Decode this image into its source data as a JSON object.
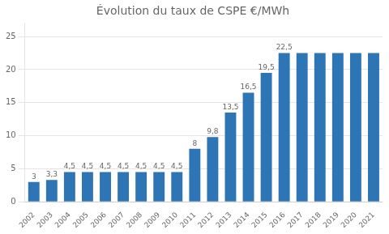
{
  "chart_data": {
    "type": "bar",
    "title": "Évolution du taux de CSPE €/MWh",
    "categories": [
      "2002",
      "2003",
      "2004",
      "2005",
      "2006",
      "2007",
      "2008",
      "2009",
      "2010",
      "2011",
      "2012",
      "2013",
      "2014",
      "2015",
      "2016",
      "2017",
      "2018",
      "2019",
      "2020",
      "2021"
    ],
    "values": [
      3,
      3.3,
      4.5,
      4.5,
      4.5,
      4.5,
      4.5,
      4.5,
      4.5,
      8,
      9.8,
      13.5,
      16.5,
      19.5,
      22.5,
      22.5,
      22.5,
      22.5,
      22.5,
      22.5
    ],
    "value_labels": [
      "3",
      "3,3",
      "4,5",
      "4,5",
      "4,5",
      "4,5",
      "4,5",
      "4,5",
      "4,5",
      "8",
      "9,8",
      "13,5",
      "16,5",
      "19,5",
      "22,5",
      null,
      null,
      null,
      null,
      null
    ],
    "data_labels": true,
    "color": "#2E75B6",
    "ylim": [
      0,
      27
    ],
    "yticks": [
      0,
      5,
      10,
      15,
      20,
      25
    ],
    "grid": true
  }
}
